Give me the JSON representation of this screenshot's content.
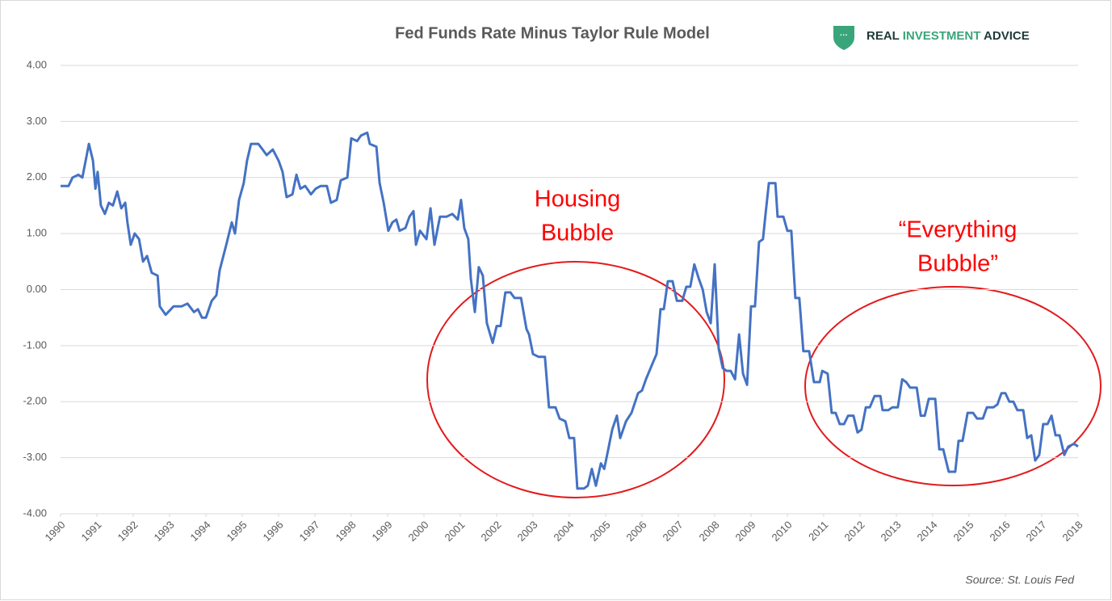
{
  "chart_data": {
    "type": "line",
    "title": "Fed Funds Rate Minus Taylor Rule Model",
    "source": "Source: St. Louis Fed",
    "logo": [
      "REAL",
      "INVESTMENT",
      "ADVICE"
    ],
    "annotations": [
      [
        "Housing",
        "Bubble"
      ],
      [
        "“Everything",
        "Bubble”"
      ]
    ],
    "xlim": [
      1990,
      2018
    ],
    "xticks": [
      1990,
      1991,
      1992,
      1993,
      1994,
      1995,
      1996,
      1997,
      1998,
      1999,
      2000,
      2001,
      2002,
      2003,
      2004,
      2005,
      2006,
      2007,
      2008,
      2009,
      2010,
      2011,
      2012,
      2013,
      2014,
      2015,
      2016,
      2017,
      2018
    ],
    "ylim": [
      -4,
      4
    ],
    "yticks": [
      {
        "value": -4,
        "label": "-4.00"
      },
      {
        "value": -3,
        "label": "-3.00"
      },
      {
        "value": -2,
        "label": "-2.00"
      },
      {
        "value": -1,
        "label": "-1.00"
      },
      {
        "value": 0,
        "label": "0.00"
      },
      {
        "value": 1,
        "label": "1.00"
      },
      {
        "value": 2,
        "label": "2.00"
      },
      {
        "value": 3,
        "label": "3.00"
      },
      {
        "value": 4,
        "label": "4.00"
      }
    ],
    "grid": true,
    "series": [
      {
        "color": "#4472c4",
        "x": [
          1990,
          1990.22,
          1990.33,
          1990.49,
          1990.6,
          1990.78,
          1990.89,
          1990.96,
          1991.02,
          1991.11,
          1991.22,
          1991.33,
          1991.44,
          1991.56,
          1991.67,
          1991.78,
          1991.84,
          1991.93,
          1992.04,
          1992.16,
          1992.27,
          1992.38,
          1992.51,
          1992.67,
          1992.73,
          1992.89,
          1993.11,
          1993.33,
          1993.49,
          1993.67,
          1993.78,
          1993.89,
          1994.0,
          1994.16,
          1994.29,
          1994.38,
          1994.56,
          1994.71,
          1994.8,
          1994.91,
          1995.04,
          1995.13,
          1995.24,
          1995.44,
          1995.56,
          1995.67,
          1995.84,
          1996.0,
          1996.11,
          1996.22,
          1996.38,
          1996.49,
          1996.6,
          1996.73,
          1996.89,
          1997.02,
          1997.16,
          1997.33,
          1997.44,
          1997.6,
          1997.71,
          1997.89,
          1998.0,
          1998.16,
          1998.27,
          1998.44,
          1998.51,
          1998.69,
          1998.78,
          1998.89,
          1999.02,
          1999.13,
          1999.24,
          1999.33,
          1999.49,
          1999.6,
          1999.71,
          1999.78,
          1999.89,
          2000.07,
          2000.18,
          2000.29,
          2000.44,
          2000.62,
          2000.78,
          2000.93,
          2001.02,
          2001.11,
          2001.22,
          2001.29,
          2001.4,
          2001.51,
          2001.62,
          2001.73,
          2001.89,
          2002.0,
          2002.11,
          2002.24,
          2002.38,
          2002.49,
          2002.67,
          2002.82,
          2002.89,
          2003.0,
          2003.16,
          2003.33,
          2003.44,
          2003.62,
          2003.73,
          2003.89,
          2004.0,
          2004.13,
          2004.22,
          2004.4,
          2004.51,
          2004.62,
          2004.73,
          2004.87,
          2004.96,
          2005.04,
          2005.18,
          2005.31,
          2005.4,
          2005.56,
          2005.71,
          2005.89,
          2006.0,
          2006.11,
          2006.27,
          2006.4,
          2006.51,
          2006.6,
          2006.71,
          2006.84,
          2006.96,
          2007.11,
          2007.22,
          2007.33,
          2007.44,
          2007.56,
          2007.67,
          2007.78,
          2007.89,
          2008.0,
          2008.11,
          2008.22,
          2008.33,
          2008.44,
          2008.56,
          2008.67,
          2008.78,
          2008.89,
          2009.0,
          2009.11,
          2009.22,
          2009.33,
          2009.4,
          2009.49,
          2009.67,
          2009.73,
          2009.89,
          2010.0,
          2010.11,
          2010.22,
          2010.33,
          2010.44,
          2010.6,
          2010.73,
          2010.89,
          2010.96,
          2011.11,
          2011.22,
          2011.33,
          2011.44,
          2011.56,
          2011.67,
          2011.82,
          2011.93,
          2012.04,
          2012.16,
          2012.27,
          2012.4,
          2012.56,
          2012.62,
          2012.78,
          2012.89,
          2013.04,
          2013.16,
          2013.27,
          2013.38,
          2013.56,
          2013.67,
          2013.78,
          2013.89,
          2014.07,
          2014.18,
          2014.29,
          2014.44,
          2014.62,
          2014.71,
          2014.82,
          2014.96,
          2015.11,
          2015.22,
          2015.38,
          2015.49,
          2015.67,
          2015.78,
          2015.89,
          2016.0,
          2016.11,
          2016.22,
          2016.33,
          2016.49,
          2016.6,
          2016.71,
          2016.82,
          2016.93,
          2017.04,
          2017.16,
          2017.27,
          2017.38,
          2017.49,
          2017.62,
          2017.73,
          2017.89,
          2018.0
        ],
        "values": [
          1.85,
          1.85,
          2.0,
          2.05,
          2.0,
          2.6,
          2.3,
          1.8,
          2.1,
          1.5,
          1.35,
          1.55,
          1.5,
          1.75,
          1.45,
          1.55,
          1.2,
          0.8,
          1.0,
          0.9,
          0.5,
          0.6,
          0.3,
          0.25,
          -0.3,
          -0.45,
          -0.3,
          -0.3,
          -0.25,
          -0.4,
          -0.35,
          -0.5,
          -0.5,
          -0.2,
          -0.1,
          0.35,
          0.8,
          1.2,
          1.0,
          1.6,
          1.9,
          2.3,
          2.6,
          2.6,
          2.5,
          2.4,
          2.5,
          2.3,
          2.1,
          1.65,
          1.7,
          2.05,
          1.8,
          1.85,
          1.7,
          1.8,
          1.85,
          1.85,
          1.55,
          1.6,
          1.95,
          2.0,
          2.7,
          2.65,
          2.75,
          2.8,
          2.6,
          2.55,
          1.9,
          1.55,
          1.05,
          1.2,
          1.25,
          1.05,
          1.1,
          1.3,
          1.4,
          0.8,
          1.05,
          0.9,
          1.45,
          0.8,
          1.3,
          1.3,
          1.35,
          1.25,
          1.6,
          1.1,
          0.9,
          0.2,
          -0.4,
          0.4,
          0.25,
          -0.6,
          -0.95,
          -0.65,
          -0.65,
          -0.05,
          -0.05,
          -0.15,
          -0.15,
          -0.7,
          -0.8,
          -1.15,
          -1.2,
          -1.2,
          -2.1,
          -2.1,
          -2.3,
          -2.35,
          -2.65,
          -2.65,
          -3.55,
          -3.55,
          -3.5,
          -3.2,
          -3.5,
          -3.1,
          -3.2,
          -2.95,
          -2.5,
          -2.25,
          -2.65,
          -2.35,
          -2.2,
          -1.85,
          -1.8,
          -1.6,
          -1.35,
          -1.15,
          -0.35,
          -0.35,
          0.15,
          0.15,
          -0.2,
          -0.2,
          0.05,
          0.05,
          0.45,
          0.2,
          0.0,
          -0.4,
          -0.6,
          0.45,
          -1.05,
          -1.4,
          -1.45,
          -1.45,
          -1.6,
          -0.8,
          -1.5,
          -1.7,
          -0.3,
          -0.3,
          0.85,
          0.9,
          1.35,
          1.9,
          1.9,
          1.3,
          1.3,
          1.05,
          1.05,
          -0.15,
          -0.15,
          -1.1,
          -1.1,
          -1.65,
          -1.65,
          -1.45,
          -1.5,
          -2.2,
          -2.2,
          -2.4,
          -2.4,
          -2.25,
          -2.25,
          -2.55,
          -2.5,
          -2.1,
          -2.1,
          -1.9,
          -1.9,
          -2.15,
          -2.15,
          -2.1,
          -2.1,
          -1.6,
          -1.65,
          -1.75,
          -1.75,
          -2.25,
          -2.25,
          -1.95,
          -1.95,
          -2.85,
          -2.85,
          -3.25,
          -3.25,
          -2.7,
          -2.7,
          -2.2,
          -2.2,
          -2.3,
          -2.3,
          -2.1,
          -2.1,
          -2.05,
          -1.85,
          -1.85,
          -2.0,
          -2.0,
          -2.15,
          -2.15,
          -2.65,
          -2.6,
          -3.05,
          -2.95,
          -2.4,
          -2.4,
          -2.25,
          -2.6,
          -2.6,
          -2.95,
          -2.8,
          -2.75,
          -2.8
        ]
      }
    ]
  }
}
